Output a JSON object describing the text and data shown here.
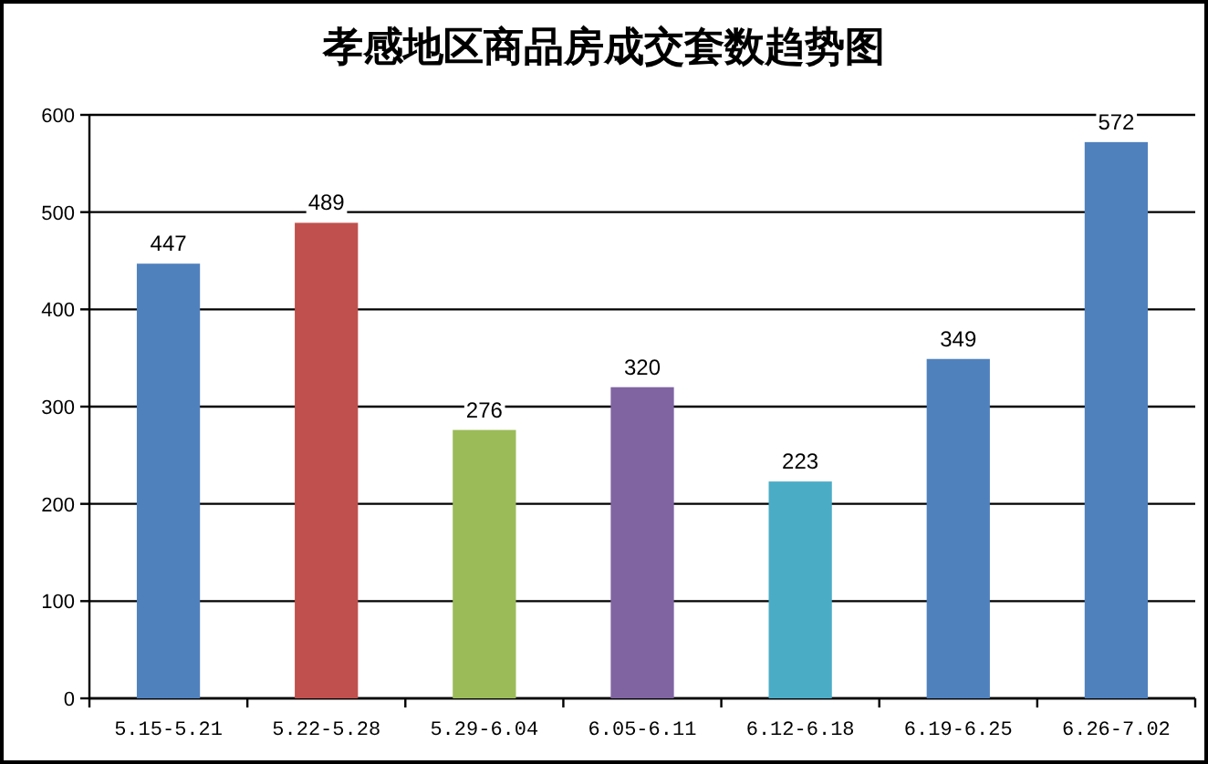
{
  "chart_data": {
    "type": "bar",
    "title": "孝感地区商品房成交套数趋势图",
    "categories": [
      "5.15-5.21",
      "5.22-5.28",
      "5.29-6.04",
      "6.05-6.11",
      "6.12-6.18",
      "6.19-6.25",
      "6.26-7.02"
    ],
    "values": [
      447,
      489,
      276,
      320,
      223,
      349,
      572
    ],
    "colors": [
      "#4f81bd",
      "#c0504d",
      "#9bbb59",
      "#8064a2",
      "#4bacc6",
      "#4f81bd",
      "#4f81bd"
    ],
    "ylim": [
      0,
      600
    ],
    "yticks": [
      0,
      100,
      200,
      300,
      400,
      500,
      600
    ],
    "grid": "y",
    "data_labels": true
  }
}
